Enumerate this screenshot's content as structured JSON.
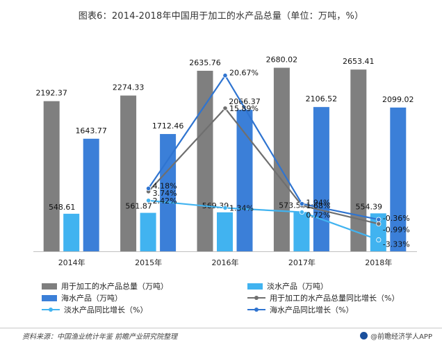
{
  "title": "图表6：2014-2018年中国用于加工的水产品总量（单位：万吨，%）",
  "chart_data": {
    "type": "bar",
    "title": "图表6：2014-2018年中国用于加工的水产品总量（单位：万吨，%）",
    "categories": [
      "2014年",
      "2015年",
      "2016年",
      "2017年",
      "2018年"
    ],
    "series": [
      {
        "name": "用于加工的水产品总量（万吨）",
        "kind": "bar",
        "color": "#7f7f7f",
        "values": [
          2192.37,
          2274.33,
          2635.76,
          2680.02,
          2653.41
        ],
        "labels": [
          "2192.37",
          "2274.33",
          "2635.76",
          "2680.02",
          "2653.41"
        ]
      },
      {
        "name": "淡水产品（万吨）",
        "kind": "bar",
        "color": "#41b3f0",
        "values": [
          548.61,
          561.87,
          569.39,
          573.5,
          554.39
        ],
        "labels": [
          "548.61",
          "561.87",
          "569.39",
          "573.50",
          "554.39"
        ]
      },
      {
        "name": "海水产品（万吨）",
        "kind": "bar",
        "color": "#3b7fd8",
        "values": [
          1643.77,
          1712.46,
          2066.37,
          2106.52,
          2099.02
        ],
        "labels": [
          "1643.77",
          "1712.46",
          "2066.37",
          "2106.52",
          "2099.02"
        ]
      },
      {
        "name": "用于加工的水产品总量同比增长（%）",
        "kind": "line",
        "color": "#6f6f6f",
        "values": [
          null,
          3.74,
          15.89,
          1.68,
          -0.99
        ],
        "labels": [
          null,
          "3.74%",
          "15.89%",
          "1.68%",
          "-0.99%"
        ]
      },
      {
        "name": "淡水产品同比增长（%）",
        "kind": "line",
        "color": "#41b3f0",
        "values": [
          null,
          2.42,
          1.34,
          0.72,
          -3.33
        ],
        "labels": [
          null,
          "2.42%",
          "1.34%",
          "0.72%",
          "-3.33%"
        ]
      },
      {
        "name": "海水产品同比增长（%）",
        "kind": "line",
        "color": "#2f74d0",
        "values": [
          null,
          4.18,
          20.67,
          1.94,
          -0.36
        ],
        "labels": [
          null,
          "4.18%",
          "20.67%",
          "1.94%",
          "-0.36%"
        ]
      }
    ],
    "ylim_left": [
      0,
      3000
    ],
    "ylim_right": [
      -5,
      25
    ],
    "legend": "bottom"
  },
  "legend": [
    "用于加工的水产品总量（万吨）",
    "淡水产品（万吨）",
    "海水产品（万吨）",
    "用于加工的水产品总量同比增长（%）",
    "淡水产品同比增长（%）",
    "海水产品同比增长（%）"
  ],
  "colors": {
    "total": "#7f7f7f",
    "fresh": "#41b3f0",
    "sea": "#3b7fd8",
    "total_line": "#6f6f6f",
    "fresh_line": "#41b3f0",
    "sea_line": "#2f74d0"
  },
  "source": "资料来源：中国渔业统计年鉴 前瞻产业研究院整理",
  "brand": "@前瞻经济学人APP"
}
